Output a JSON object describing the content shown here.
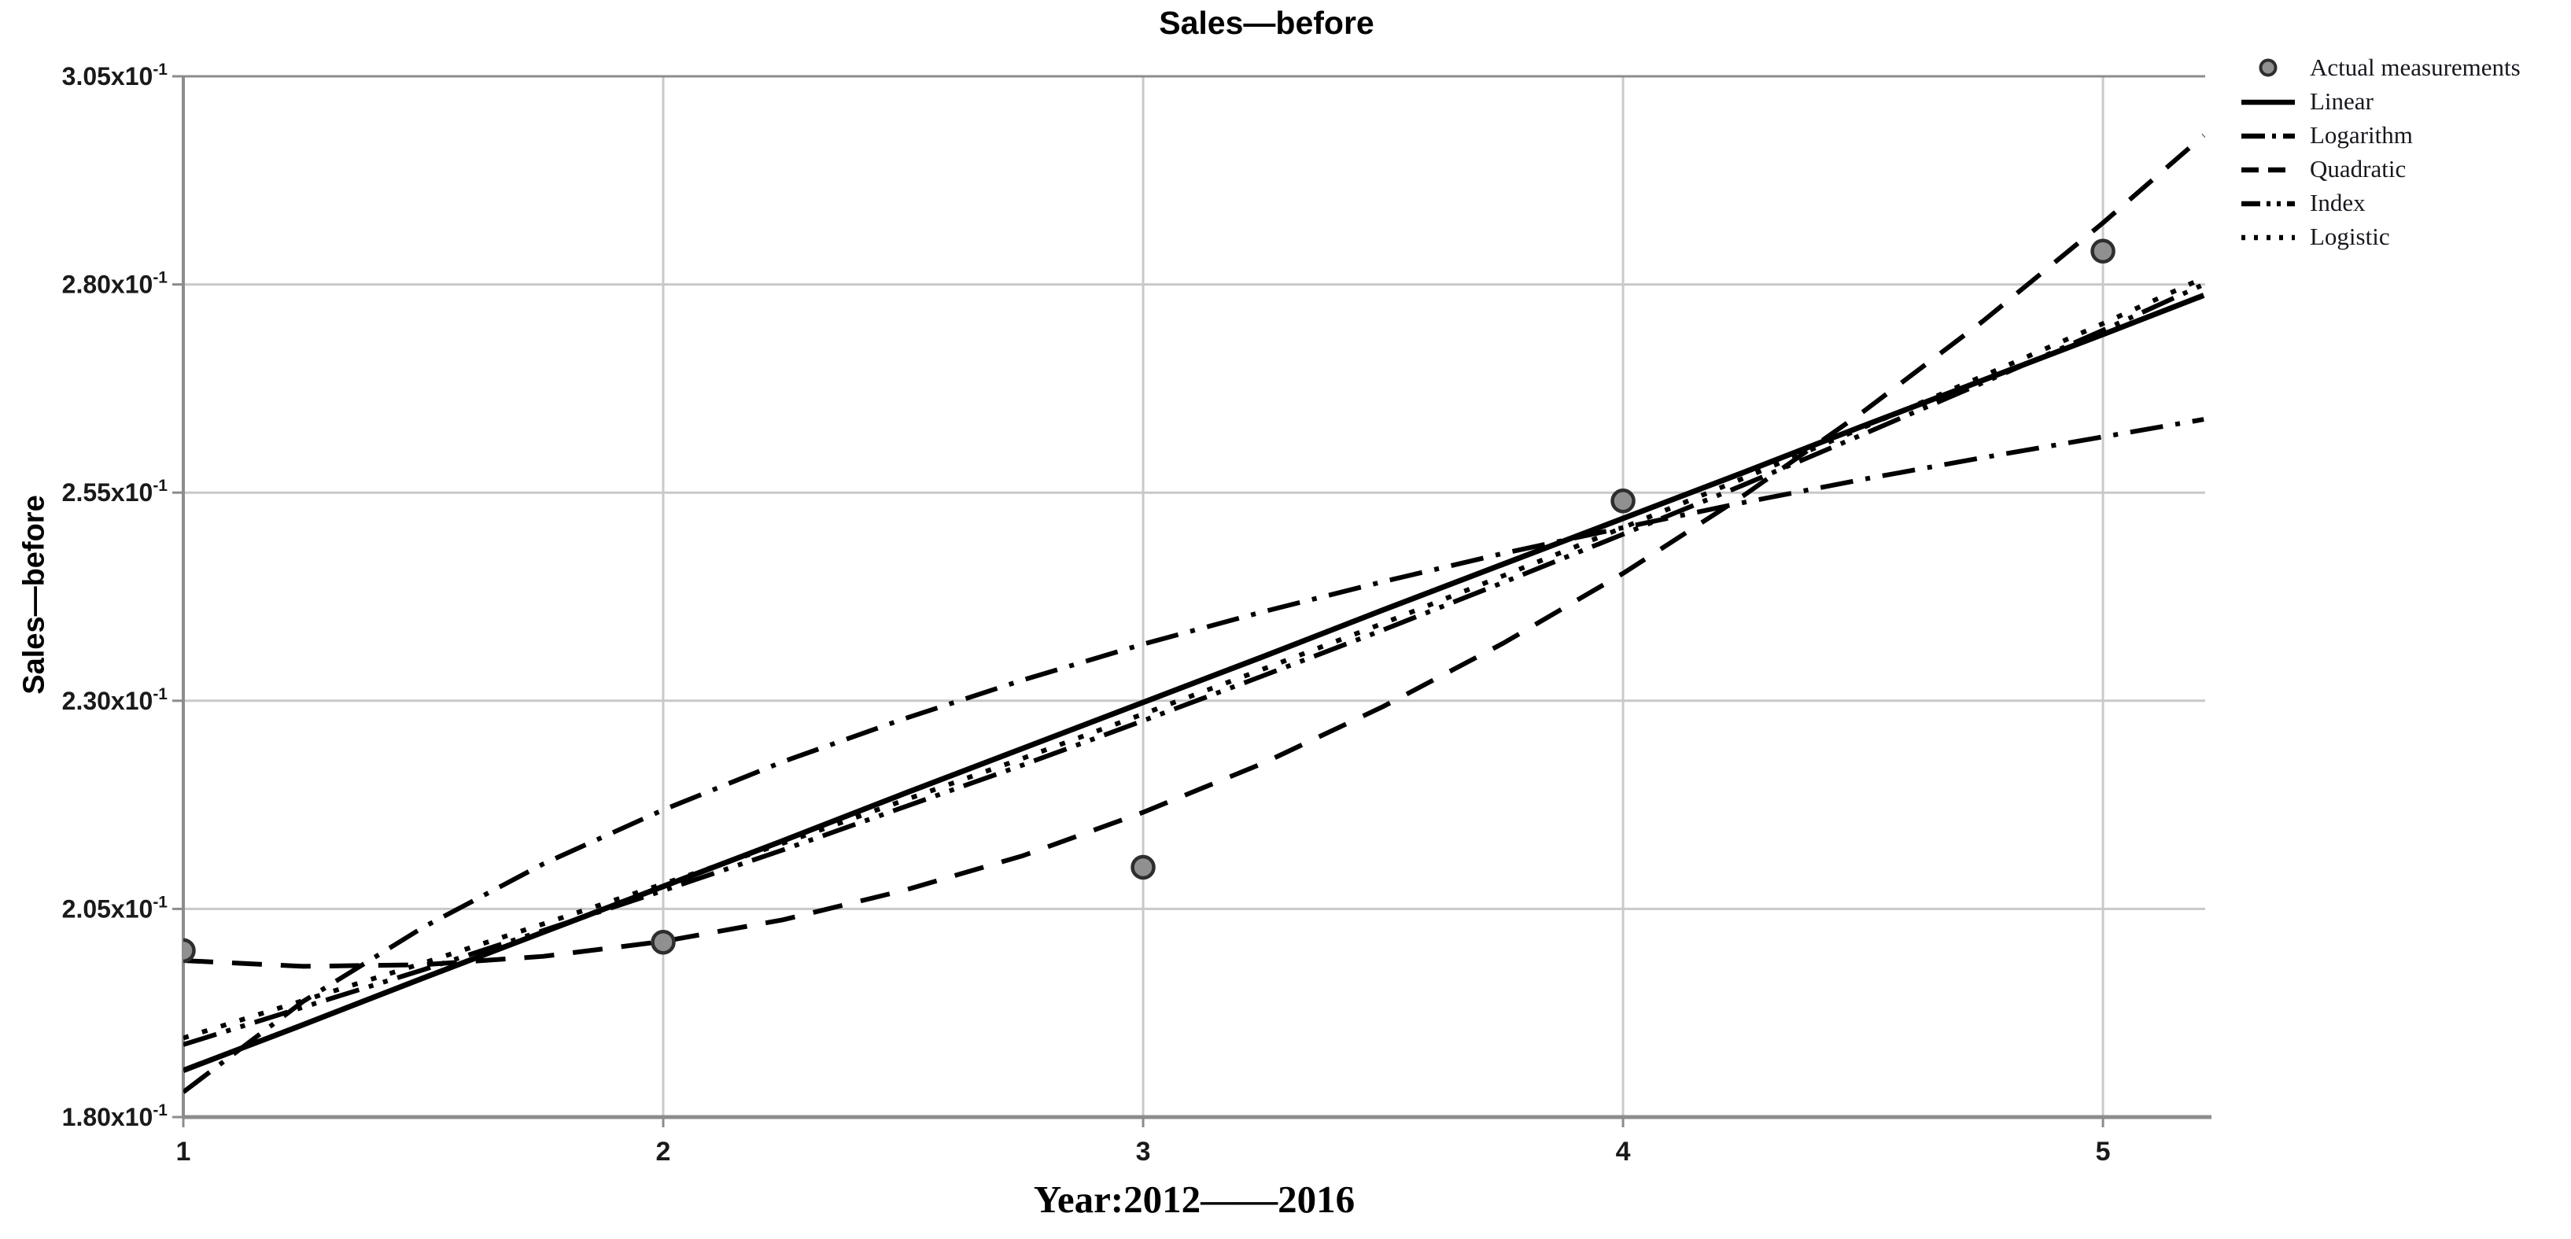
{
  "chart_data": {
    "type": "line",
    "title": "Sales—before",
    "xlabel": "Year:2012——2016",
    "ylabel": "Sales—before",
    "x_range": [
      1,
      5.213
    ],
    "y_range": [
      0.18,
      0.305
    ],
    "grid": true,
    "legend_position": "top-right",
    "x_ticks": [
      {
        "value": 1,
        "label": "1"
      },
      {
        "value": 2,
        "label": "2"
      },
      {
        "value": 3,
        "label": "3"
      },
      {
        "value": 4,
        "label": "4"
      },
      {
        "value": 5,
        "label": "5"
      }
    ],
    "y_ticks": [
      {
        "value": 0.18,
        "label": "1.80x10",
        "sup": "-1"
      },
      {
        "value": 0.205,
        "label": "2.05x10",
        "sup": "-1"
      },
      {
        "value": 0.23,
        "label": "2.30x10",
        "sup": "-1"
      },
      {
        "value": 0.255,
        "label": "2.55x10",
        "sup": "-1"
      },
      {
        "value": 0.28,
        "label": "2.80x10",
        "sup": "-1"
      },
      {
        "value": 0.305,
        "label": "3.05x10",
        "sup": "-1"
      }
    ],
    "points": {
      "name": "Actual measurements",
      "x": [
        1,
        2,
        3,
        4,
        5
      ],
      "y": [
        0.2,
        0.201,
        0.21,
        0.254,
        0.284
      ]
    },
    "sample_x": [
      1,
      1.25,
      1.5,
      1.75,
      2,
      2.25,
      2.5,
      2.75,
      3,
      3.25,
      3.5,
      3.75,
      4,
      4.25,
      4.5,
      4.75,
      5,
      5.21
    ],
    "series": [
      {
        "name": "Linear",
        "style": "solid",
        "values": [
          0.1856,
          0.1911,
          0.1967,
          0.2022,
          0.2077,
          0.2132,
          0.2188,
          0.2243,
          0.2298,
          0.2353,
          0.2409,
          0.2464,
          0.2519,
          0.2574,
          0.263,
          0.2685,
          0.274,
          0.2787
        ]
      },
      {
        "name": "Logarithm",
        "style": "dash-dot",
        "values": [
          0.183,
          0.1939,
          0.2028,
          0.2104,
          0.2169,
          0.2227,
          0.2278,
          0.2325,
          0.2368,
          0.2407,
          0.2443,
          0.2477,
          0.2508,
          0.2538,
          0.2566,
          0.2592,
          0.2617,
          0.2638
        ]
      },
      {
        "name": "Quadratic",
        "style": "dash",
        "values": [
          0.1988,
          0.1981,
          0.1983,
          0.1993,
          0.2011,
          0.2037,
          0.2072,
          0.2114,
          0.2166,
          0.2225,
          0.2293,
          0.2369,
          0.2453,
          0.2546,
          0.2647,
          0.2756,
          0.2874,
          0.2979
        ]
      },
      {
        "name": "Index",
        "style": "dash-dot-dot",
        "values": [
          0.1887,
          0.1932,
          0.1977,
          0.2024,
          0.2072,
          0.2121,
          0.2172,
          0.2223,
          0.2276,
          0.233,
          0.2385,
          0.2442,
          0.25,
          0.2559,
          0.262,
          0.2682,
          0.2745,
          0.28
        ]
      },
      {
        "name": "Logistic",
        "style": "dot",
        "values": [
          0.1895,
          0.194,
          0.1985,
          0.2032,
          0.208,
          0.2129,
          0.218,
          0.2231,
          0.2284,
          0.2338,
          0.2393,
          0.245,
          0.2508,
          0.2567,
          0.2628,
          0.269,
          0.2753,
          0.2808
        ]
      }
    ],
    "legend": [
      {
        "label": "Actual measurements",
        "marker": "point",
        "style": "point"
      },
      {
        "label": "Linear",
        "marker": "line",
        "style": "solid"
      },
      {
        "label": "Logarithm",
        "marker": "line",
        "style": "dash-dot"
      },
      {
        "label": "Quadratic",
        "marker": "line",
        "style": "dash"
      },
      {
        "label": "Index",
        "marker": "line",
        "style": "dash-dot-dot"
      },
      {
        "label": "Logistic",
        "marker": "line",
        "style": "dot"
      }
    ],
    "colors": {
      "curve": "#000000",
      "gridline": "#c9c9c9",
      "frame": "#8c8c8c",
      "tick_text": "#1a1a1a",
      "point_fill": "#909090",
      "point_stroke": "#2e2e2e",
      "legend_text": "#17171f"
    }
  }
}
